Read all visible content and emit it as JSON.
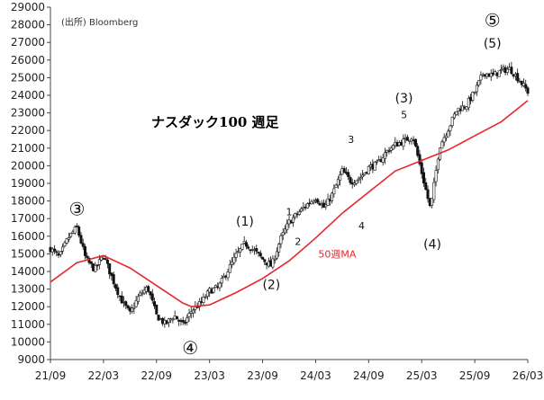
{
  "chart_data": {
    "type": "candlestick",
    "title": "ナスダック100 週足",
    "source": "(出所) Bloomberg",
    "x_ticks": [
      "21/09",
      "22/03",
      "22/09",
      "23/03",
      "23/09",
      "24/03",
      "24/09",
      "25/03",
      "25/09",
      "26/03"
    ],
    "y_ticks": [
      9000,
      10000,
      11000,
      12000,
      13000,
      14000,
      15000,
      16000,
      17000,
      18000,
      19000,
      20000,
      21000,
      22000,
      23000,
      24000,
      25000,
      26000,
      27000,
      28000,
      29000
    ],
    "ylim": [
      9000,
      29000
    ],
    "grid": false,
    "series": [
      {
        "name": "ナスダック100",
        "kind": "candlestick",
        "x": [
          "21/09",
          "21/10",
          "21/11",
          "21/12",
          "22/01",
          "22/02",
          "22/03",
          "22/04",
          "22/05",
          "22/06",
          "22/07",
          "22/08",
          "22/09",
          "22/10",
          "22/11",
          "22/12",
          "23/01",
          "23/02",
          "23/03",
          "23/04",
          "23/05",
          "23/06",
          "23/07",
          "23/08",
          "23/09",
          "23/10",
          "23/11",
          "23/12",
          "24/01",
          "24/02",
          "24/03",
          "24/04",
          "24/05",
          "24/06",
          "24/07",
          "24/08",
          "24/09",
          "24/10",
          "24/11",
          "24/12",
          "25/01",
          "25/02",
          "25/03",
          "25/04",
          "25/05",
          "25/06",
          "25/07",
          "25/08",
          "25/09",
          "25/10",
          "25/11",
          "25/12",
          "26/01",
          "26/02",
          "26/03"
        ],
        "values": [
          15300,
          14800,
          15900,
          16500,
          14700,
          14100,
          14900,
          13600,
          12400,
          11600,
          12600,
          13100,
          11500,
          11000,
          11500,
          10950,
          11800,
          12200,
          12900,
          13100,
          14000,
          14900,
          15600,
          15200,
          14700,
          14300,
          15800,
          16800,
          17300,
          17800,
          18200,
          17600,
          18500,
          19700,
          19100,
          19300,
          19900,
          20100,
          20800,
          21200,
          21400,
          21700,
          19600,
          17500,
          21100,
          22100,
          23200,
          23400,
          24200,
          25300,
          25100,
          25400,
          25500,
          24900,
          24200
        ]
      },
      {
        "name": "50週MA",
        "kind": "line",
        "color": "#e8262b",
        "x": [
          "21/09",
          "21/12",
          "22/03",
          "22/06",
          "22/09",
          "22/12",
          "23/01",
          "23/03",
          "23/06",
          "23/09",
          "23/12",
          "24/03",
          "24/06",
          "24/09",
          "24/12",
          "25/03",
          "25/06",
          "25/09",
          "25/12",
          "26/03"
        ],
        "values": [
          13400,
          14500,
          14900,
          14200,
          13200,
          12200,
          12000,
          12100,
          12800,
          13600,
          14600,
          15900,
          17300,
          18500,
          19700,
          20300,
          20900,
          21700,
          22500,
          23700
        ]
      }
    ],
    "annotations": [
      {
        "text": "③",
        "x": "21/12"
      },
      {
        "text": "④",
        "x": "22/12"
      },
      {
        "text": "(1)",
        "x": "23/07"
      },
      {
        "text": "(2)",
        "x": "23/10"
      },
      {
        "text": "1",
        "x": "23/12"
      },
      {
        "text": "2",
        "x": "24/01"
      },
      {
        "text": "3",
        "x": "24/07"
      },
      {
        "text": "4",
        "x": "24/08"
      },
      {
        "text": "(3)",
        "x": "25/01"
      },
      {
        "text": "5",
        "x": "25/01"
      },
      {
        "text": "(4)",
        "x": "25/04"
      },
      {
        "text": "⑤",
        "x": "25/11"
      },
      {
        "text": "(5)",
        "x": "25/11"
      },
      {
        "text": "50週MA",
        "x": "24/03"
      }
    ]
  }
}
